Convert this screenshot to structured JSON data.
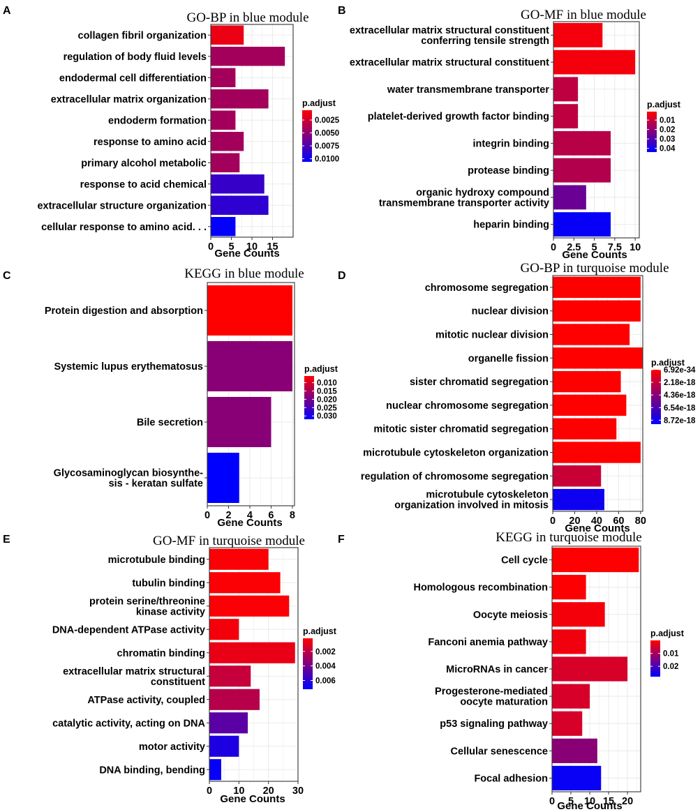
{
  "colors": {
    "low_padj": "#ff0000",
    "high_padj": "#0000ff",
    "grid": "#ebebeb",
    "panel_border": "#333333",
    "text": "#000000"
  },
  "chart_data": [
    {
      "id": "A",
      "type": "bar",
      "orientation": "horizontal",
      "panel_letter": "A",
      "title": "GO-BP in blue module",
      "xlabel": "Gene Counts",
      "categories": [
        [
          "collagen fibril organization"
        ],
        [
          "regulation of body fluid levels"
        ],
        [
          "endodermal cell differentiation"
        ],
        [
          "extracellular matrix organization"
        ],
        [
          "endoderm formation"
        ],
        [
          "response to amino acid"
        ],
        [
          "primary alcohol metabolic"
        ],
        [
          "response to acid chemical"
        ],
        [
          "extracellular structure organization"
        ],
        [
          "cellular response to amino acid. . ."
        ]
      ],
      "values": [
        8,
        18,
        6,
        14,
        6,
        8,
        7,
        13,
        14,
        6
      ],
      "padj": [
        0.0014,
        0.0042,
        0.0042,
        0.0042,
        0.0042,
        0.0042,
        0.0042,
        0.0085,
        0.0088,
        0.0105
      ],
      "xlim": [
        0,
        20
      ],
      "xticks": [
        0,
        5,
        10,
        15
      ],
      "xtick_labels": [
        "0",
        "5",
        "10",
        "15"
      ],
      "legend": {
        "title": "p.adjust",
        "range": [
          0.0006,
          0.0106
        ],
        "ticks": [
          0.0025,
          0.005,
          0.0075,
          0.01
        ],
        "tick_labels": [
          "0.0025",
          "0.0050",
          "0.0075",
          "0.0100"
        ]
      }
    },
    {
      "id": "B",
      "type": "bar",
      "orientation": "horizontal",
      "panel_letter": "B",
      "title": "GO-MF in blue module",
      "xlabel": "Gene Counts",
      "categories": [
        [
          "extracellular matrix structural constituent",
          "conferring tensile strength"
        ],
        [
          "extracellular matrix structural constituent"
        ],
        [
          "water transmembrane transporter"
        ],
        [
          "platelet-derived growth factor binding"
        ],
        [
          "integrin binding"
        ],
        [
          "protease binding"
        ],
        [
          "organic hydroxy compound",
          "transmembrane transporter activity"
        ],
        [
          "heparin binding"
        ]
      ],
      "values": [
        6,
        10,
        3,
        3,
        7,
        7,
        4,
        7
      ],
      "padj": [
        0.003,
        0.003,
        0.012,
        0.012,
        0.013,
        0.014,
        0.026,
        0.043
      ],
      "xlim": [
        0,
        10.5
      ],
      "xticks": [
        0,
        2.5,
        5,
        7.5,
        10
      ],
      "xtick_labels": [
        "0",
        "2.5",
        "5",
        "7.5",
        "10"
      ],
      "legend": {
        "title": "p.adjust",
        "range": [
          0.001,
          0.044
        ],
        "ticks": [
          0.01,
          0.02,
          0.03,
          0.04
        ],
        "tick_labels": [
          "0.01",
          "0.02",
          "0.03",
          "0.04"
        ]
      }
    },
    {
      "id": "C",
      "type": "bar",
      "orientation": "horizontal",
      "panel_letter": "C",
      "title": "KEGG in blue module",
      "xlabel": "Gene Counts",
      "categories": [
        [
          "Protein digestion and absorption"
        ],
        [
          "Systemic lupus erythematosus"
        ],
        [
          "Bile secretion"
        ],
        [
          "Glycosaminoglycan biosynthe-",
          "sis - keratan sulfate"
        ]
      ],
      "values": [
        8,
        8,
        6,
        3
      ],
      "padj": [
        0.0035,
        0.018,
        0.018,
        0.032
      ],
      "xlim": [
        0,
        8.2
      ],
      "xticks": [
        0,
        2,
        4,
        6,
        8
      ],
      "xtick_labels": [
        "0",
        "2",
        "4",
        "6",
        "8"
      ],
      "legend": {
        "title": "p.adjust",
        "range": [
          0.006,
          0.032
        ],
        "ticks": [
          0.01,
          0.015,
          0.02,
          0.025,
          0.03
        ],
        "tick_labels": [
          "0.010",
          "0.015",
          "0.020",
          "0.025",
          "0.030"
        ]
      }
    },
    {
      "id": "D",
      "type": "bar",
      "orientation": "horizontal",
      "panel_letter": "D",
      "title": "GO-BP in turquoise module",
      "xlabel": "Gene Counts",
      "categories": [
        [
          "chromosome segregation"
        ],
        [
          "nuclear division"
        ],
        [
          "mitotic nuclear division"
        ],
        [
          "organelle fission"
        ],
        [
          "sister chromatid segregation"
        ],
        [
          "nuclear chromosome segregation"
        ],
        [
          "mitotic sister chromatid segregation"
        ],
        [
          "microtubule cytoskeleton organization"
        ],
        [
          "regulation of chromosome segregation"
        ],
        [
          "microtubule cytoskeleton",
          "organization involved in mitosis"
        ]
      ],
      "values": [
        80,
        80,
        70,
        82,
        62,
        67,
        58,
        80,
        44,
        47
      ],
      "padj": [
        1e-36,
        1e-35,
        1e-34,
        1e-33,
        1e-30,
        1e-29,
        1e-27,
        1e-25,
        2e-18,
        8.9e-18
      ],
      "xlim": [
        0,
        82
      ],
      "xticks": [
        0,
        20,
        40,
        60,
        80
      ],
      "xtick_labels": [
        "0",
        "20",
        "40",
        "60",
        "80"
      ],
      "legend": {
        "title": "p.adjust",
        "range": [
          0,
          9.4e-18
        ],
        "ticks": [
          6.92e-34,
          2.18e-18,
          4.36e-18,
          6.54e-18,
          8.72e-18
        ],
        "tick_labels": [
          "6.92e-34",
          "2.18e-18",
          "4.36e-18",
          "6.54e-18",
          "8.72e-18"
        ]
      }
    },
    {
      "id": "E",
      "type": "bar",
      "orientation": "horizontal",
      "panel_letter": "E",
      "title": "GO-MF in turquoise module",
      "xlabel": "Gene Counts",
      "categories": [
        [
          "microtubule binding"
        ],
        [
          "tubulin binding"
        ],
        [
          "protein serine/threonine",
          "kinase activity"
        ],
        [
          "DNA-dependent ATPase activity"
        ],
        [
          "chromatin binding"
        ],
        [
          "extracellular matrix structural",
          "constituent"
        ],
        [
          "ATPase activity, coupled"
        ],
        [
          "catalytic activity, acting on DNA"
        ],
        [
          "motor activity"
        ],
        [
          "DNA binding, bending"
        ]
      ],
      "values": [
        20,
        24,
        27,
        10,
        29,
        14,
        17,
        13,
        10,
        4
      ],
      "padj": [
        0.0003,
        0.0003,
        0.0003,
        0.0005,
        0.0008,
        0.0018,
        0.0022,
        0.0047,
        0.0064,
        0.007
      ],
      "xlim": [
        0,
        30
      ],
      "xticks": [
        0,
        10,
        20,
        30
      ],
      "xtick_labels": [
        "0",
        "10",
        "20",
        "30"
      ],
      "legend": {
        "title": "p.adjust",
        "range": [
          0.0002,
          0.0072
        ],
        "ticks": [
          0.002,
          0.004,
          0.006
        ],
        "tick_labels": [
          "0.002",
          "0.004",
          "0.006"
        ]
      }
    },
    {
      "id": "F",
      "type": "bar",
      "orientation": "horizontal",
      "panel_letter": "F",
      "title": "KEGG in turquoise module",
      "xlabel": "Gene Counts",
      "categories": [
        [
          "Cell cycle"
        ],
        [
          "Homologous recombination"
        ],
        [
          "Oocyte meiosis"
        ],
        [
          "Fanconi anemia pathway"
        ],
        [
          "MicroRNAs in cancer"
        ],
        [
          "Progesterone-mediated",
          "oocyte maturation"
        ],
        [
          "p53 signaling pathway"
        ],
        [
          "Cellular senescence"
        ],
        [
          "Focal adhesion"
        ]
      ],
      "values": [
        23,
        9,
        14,
        9,
        20,
        10,
        8,
        12,
        13
      ],
      "padj": [
        0.0001,
        0.0002,
        0.0012,
        0.0015,
        0.0045,
        0.0045,
        0.0045,
        0.013,
        0.027
      ],
      "xlim": [
        0,
        23.5
      ],
      "xticks": [
        0,
        5,
        10,
        15,
        20
      ],
      "xtick_labels": [
        "0",
        "5",
        "10",
        "15",
        "20"
      ],
      "legend": {
        "title": "p.adjust",
        "range": [
          0,
          0.028
        ],
        "ticks": [
          0.01,
          0.02
        ],
        "tick_labels": [
          "0.01",
          "0.02"
        ]
      }
    }
  ]
}
